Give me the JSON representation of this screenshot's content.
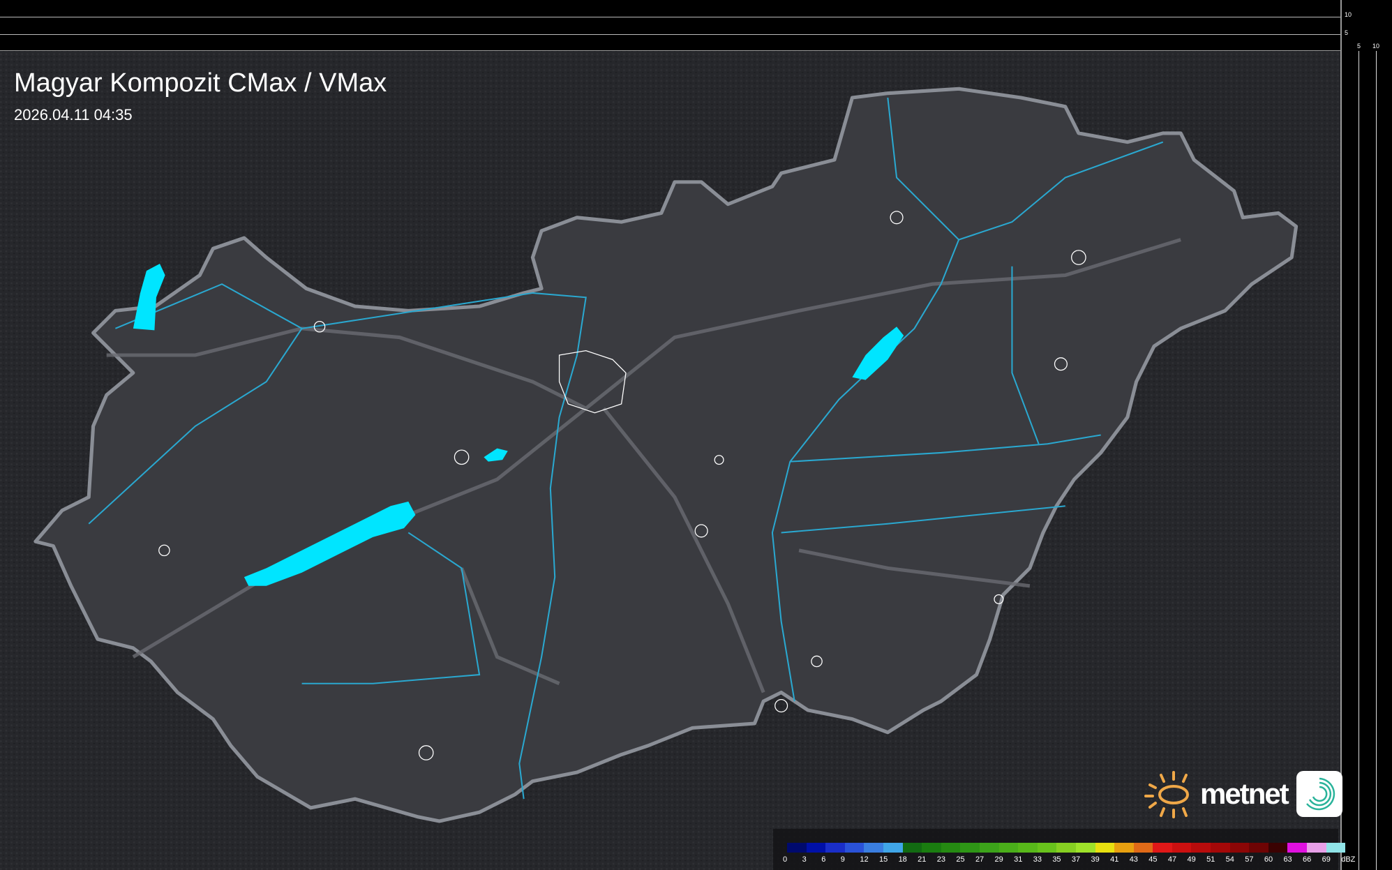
{
  "header": {
    "title": "Magyar Kompozit CMax / VMax",
    "timestamp": "2026.04.11 04:35"
  },
  "scale_ticks": {
    "vertical": [
      "10",
      "5"
    ],
    "horizontal": [
      "5",
      "10"
    ]
  },
  "legend": {
    "unit": "dBZ",
    "labels": [
      "0",
      "3",
      "6",
      "9",
      "12",
      "15",
      "18",
      "21",
      "23",
      "25",
      "27",
      "29",
      "31",
      "33",
      "35",
      "37",
      "39",
      "41",
      "43",
      "45",
      "47",
      "49",
      "51",
      "54",
      "57",
      "60",
      "63",
      "66",
      "69"
    ],
    "colors": [
      "#000a6e",
      "#0010a8",
      "#1a2ec8",
      "#2a52d8",
      "#3a7ee0",
      "#40a6e8",
      "#126b12",
      "#1a7d10",
      "#258a12",
      "#2e9616",
      "#3ca31a",
      "#4aae1a",
      "#58b81a",
      "#68c21c",
      "#86cf22",
      "#9ee22a",
      "#e8e010",
      "#e8a010",
      "#e06a18",
      "#e01818",
      "#cc1010",
      "#b80c0c",
      "#a40808",
      "#8c0606",
      "#6e0404",
      "#3a0202",
      "#e010e0",
      "#e8a0e8",
      "#90e4e8"
    ]
  },
  "brand": {
    "name": "metnet",
    "accent": "#f0a848"
  },
  "map": {
    "water_color": "#00e5ff",
    "river_color": "#2aa8d0",
    "border_color": "#8a8e96"
  }
}
